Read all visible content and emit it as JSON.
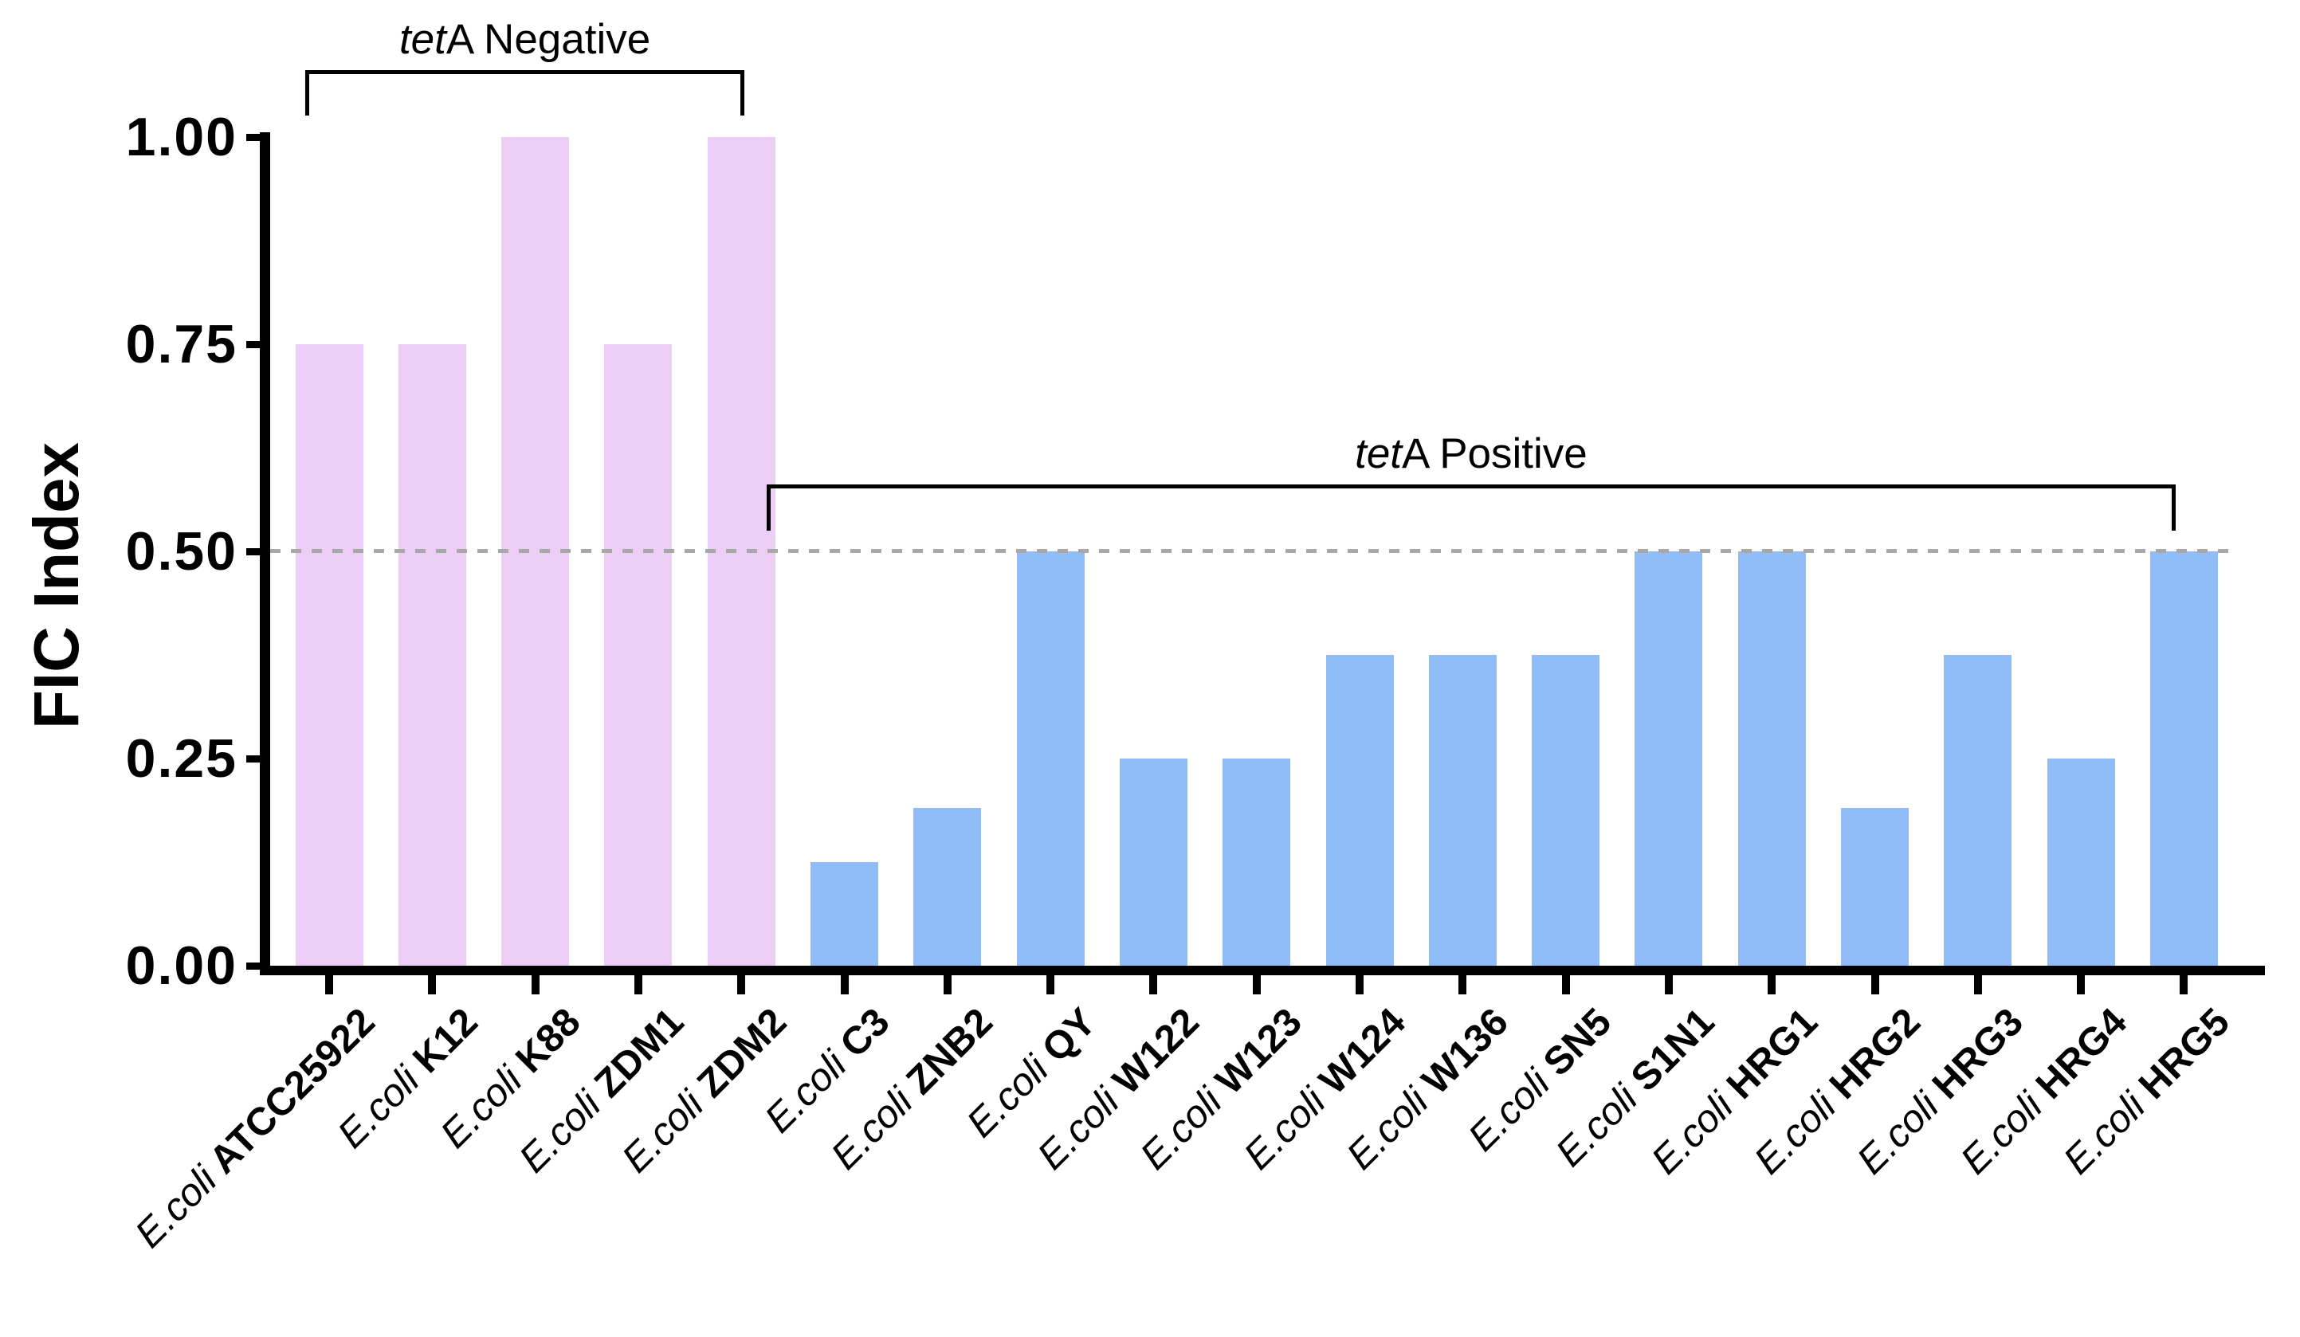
{
  "chart_data": {
    "type": "bar",
    "title": "",
    "ylabel": "FIC Index",
    "xlabel": "",
    "ylim": [
      0,
      1.0
    ],
    "grid": false,
    "legend": "none",
    "yticks": [
      {
        "label": "1.00",
        "value": 1.0
      },
      {
        "label": "0.75",
        "value": 0.75
      },
      {
        "label": "0.50",
        "value": 0.5
      },
      {
        "label": "0.25",
        "value": 0.25
      },
      {
        "label": "0.00",
        "value": 0.0
      }
    ],
    "threshold_line": {
      "value": 0.5,
      "style": "dashed",
      "color": "#A8A8A8"
    },
    "groups": [
      {
        "name": "tetA Negative",
        "label_italic": "tet",
        "label_regular": "A Negative",
        "color": "#ECCDF6",
        "from": 0,
        "to": 4
      },
      {
        "name": "tetA Positive",
        "label_italic": "tet",
        "label_regular": "A Positive",
        "color": "#90BDF7",
        "from": 5,
        "to": 18
      }
    ],
    "bars": [
      {
        "species": "E.coli",
        "strain": "ATCC25922",
        "value": 0.75,
        "group": 0
      },
      {
        "species": "E.coli",
        "strain": "K12",
        "value": 0.75,
        "group": 0
      },
      {
        "species": "E.coli",
        "strain": "K88",
        "value": 1.0,
        "group": 0
      },
      {
        "species": "E.coli",
        "strain": "ZDM1",
        "value": 0.75,
        "group": 0
      },
      {
        "species": "E.coli",
        "strain": "ZDM2",
        "value": 1.0,
        "group": 0
      },
      {
        "species": "E.coli",
        "strain": "C3",
        "value": 0.125,
        "group": 1
      },
      {
        "species": "E.coli",
        "strain": "ZNB2",
        "value": 0.19,
        "group": 1
      },
      {
        "species": "E.coli",
        "strain": "QY",
        "value": 0.5,
        "group": 1
      },
      {
        "species": "E.coli",
        "strain": "W122",
        "value": 0.25,
        "group": 1
      },
      {
        "species": "E.coli",
        "strain": "W123",
        "value": 0.25,
        "group": 1
      },
      {
        "species": "E.coli",
        "strain": "W124",
        "value": 0.375,
        "group": 1
      },
      {
        "species": "E.coli",
        "strain": "W136",
        "value": 0.375,
        "group": 1
      },
      {
        "species": "E.coli",
        "strain": "SN5",
        "value": 0.375,
        "group": 1
      },
      {
        "species": "E.coli",
        "strain": "S1N1",
        "value": 0.5,
        "group": 1
      },
      {
        "species": "E.coli",
        "strain": "HRG1",
        "value": 0.5,
        "group": 1
      },
      {
        "species": "E.coli",
        "strain": "HRG2",
        "value": 0.19,
        "group": 1
      },
      {
        "species": "E.coli",
        "strain": "HRG3",
        "value": 0.375,
        "group": 1
      },
      {
        "species": "E.coli",
        "strain": "HRG4",
        "value": 0.25,
        "group": 1
      },
      {
        "species": "E.coli",
        "strain": "HRG5",
        "value": 0.5,
        "group": 1
      }
    ],
    "axis_color": "#000000",
    "background_color": "#FFFFFF"
  }
}
